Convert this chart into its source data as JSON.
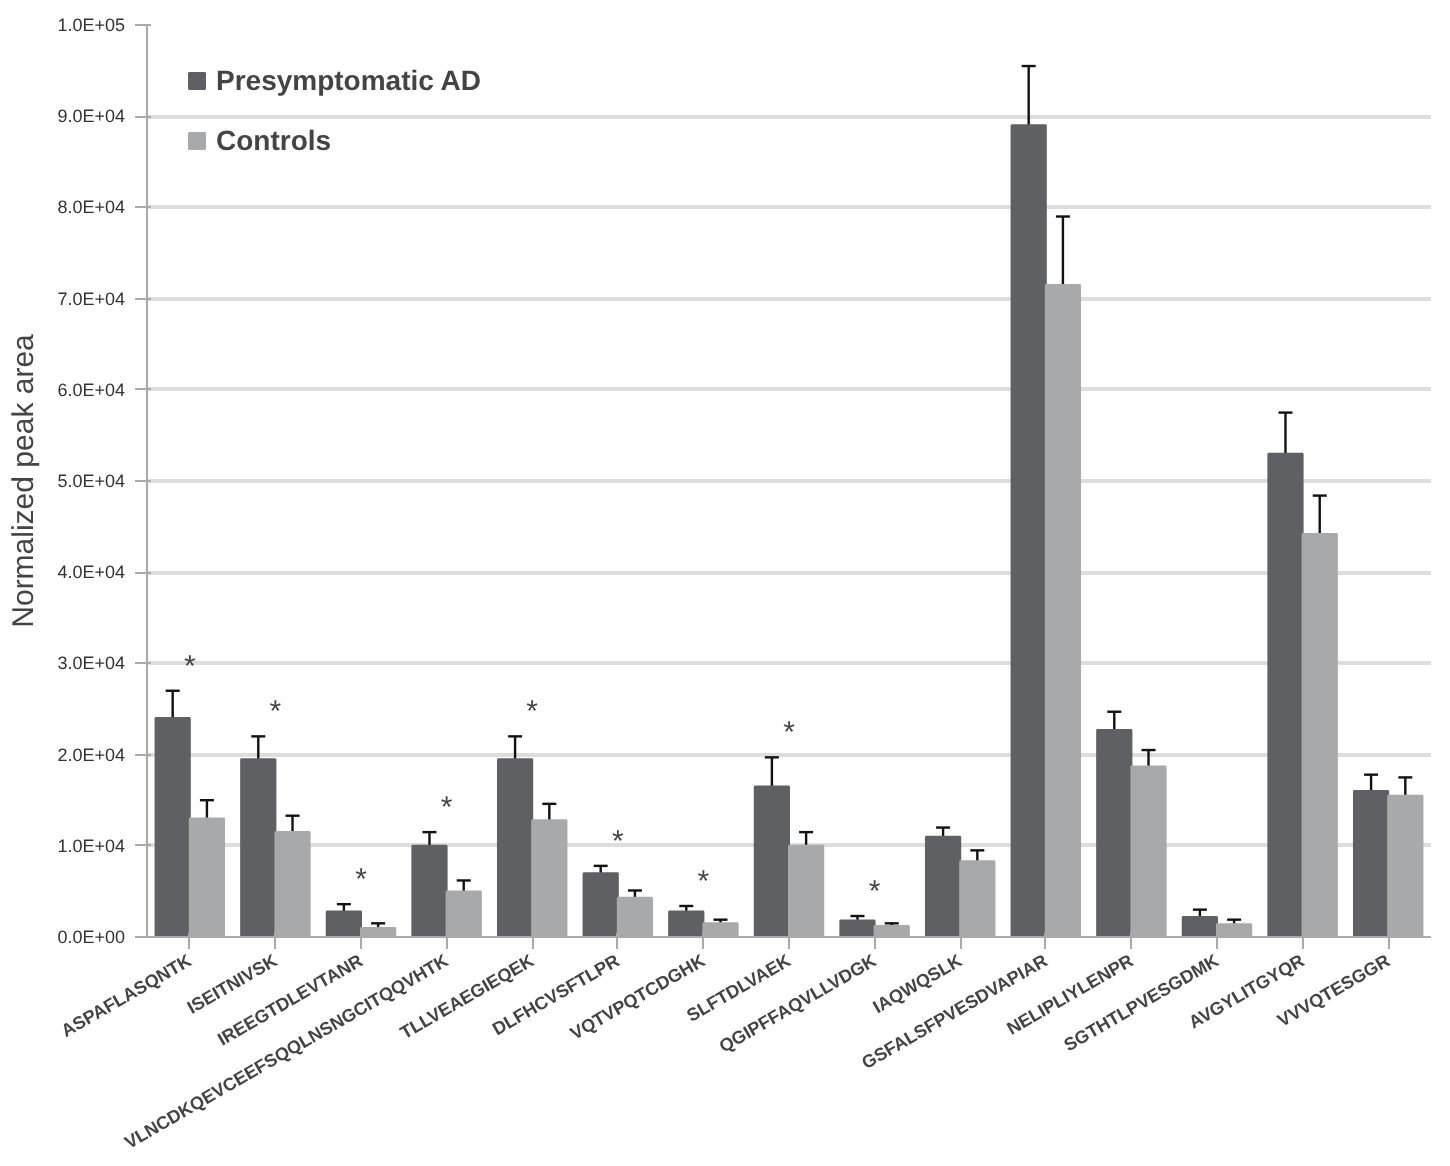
{
  "chart_data": {
    "type": "bar",
    "ylabel": "Normalized peak area",
    "categories": [
      "ASPAFLASQNTK",
      "ISEITNIVSK",
      "IREEGTDLEVTANR",
      "VLNCDKQEVCEEFSQQLNSNGCITQQVHTK",
      "TLLVEAEGIEQEK",
      "DLFHCVSFTLPR",
      "VQTVPQTCDGHK",
      "SLFTDLVAEK",
      "QGIPFFAQVLLVDGK",
      "IAQWQSLK",
      "GSFALSFPVESDVAPIAR",
      "NELIPLIYLENPR",
      "SGTHTLPVESGDMK",
      "AVGYLITGYQR",
      "VVVQTESGGR"
    ],
    "series": [
      {
        "name": "Presymptomatic AD",
        "color": "#5f6064",
        "values": [
          24000,
          19500,
          2800,
          10000,
          19500,
          7000,
          2800,
          16500,
          1800,
          11000,
          89000,
          22700,
          2200,
          53000,
          16000
        ],
        "errors": [
          3000,
          2500,
          800,
          1500,
          2500,
          800,
          600,
          3200,
          500,
          1000,
          6500,
          2000,
          800,
          4500,
          1800
        ]
      },
      {
        "name": "Controls",
        "color": "#a8a9ab",
        "values": [
          13000,
          11500,
          1000,
          5000,
          12800,
          4300,
          1500,
          10000,
          1200,
          8300,
          71500,
          18700,
          1400,
          44200,
          15500
        ],
        "errors": [
          2000,
          1800,
          500,
          1200,
          1800,
          800,
          400,
          1500,
          300,
          1200,
          7500,
          1800,
          500,
          4200,
          2000
        ]
      }
    ],
    "annotations": [
      {
        "text": "*",
        "x": "ASPAFLASQNTK",
        "y": 24000
      },
      {
        "text": "*",
        "x": "ISEITNIVSK",
        "y": 19500
      },
      {
        "text": "*",
        "x": "IREEGTDLEVTANR",
        "y": 2800
      },
      {
        "text": "*",
        "x": "VLNCDKQEVCEEFSQQLNSNGCITQQVHTK",
        "y": 10000
      },
      {
        "text": "*",
        "x": "TLLVEAEGIEQEK",
        "y": 19500
      },
      {
        "text": "*",
        "x": "DLFHCVSFTLPR",
        "y": 7000
      },
      {
        "text": "*",
        "x": "VQTVPQTCDGHK",
        "y": 2800
      },
      {
        "text": "*",
        "x": "SLFTDLVAEK",
        "y": 16500
      },
      {
        "text": "*",
        "x": "QGIPFFAQVLLVDGK",
        "y": 1800
      }
    ],
    "ylim": [
      0,
      100000
    ],
    "yticks": [
      {
        "value": 0,
        "label": "0.0E+00"
      },
      {
        "value": 10000,
        "label": "1.0E+04"
      },
      {
        "value": 20000,
        "label": "2.0E+04"
      },
      {
        "value": 30000,
        "label": "3.0E+04"
      },
      {
        "value": 40000,
        "label": "4.0E+04"
      },
      {
        "value": 50000,
        "label": "5.0E+04"
      },
      {
        "value": 60000,
        "label": "6.0E+04"
      },
      {
        "value": 70000,
        "label": "7.0E+04"
      },
      {
        "value": 80000,
        "label": "8.0E+04"
      },
      {
        "value": 90000,
        "label": "9.0E+04"
      },
      {
        "value": 100000,
        "label": "1.0E+05"
      }
    ],
    "grid": "y",
    "legend": "top left"
  }
}
